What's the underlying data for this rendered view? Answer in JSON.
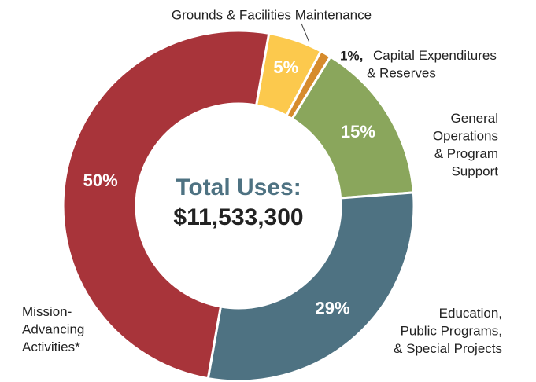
{
  "chart_data": {
    "type": "donut",
    "center_title": "Total Uses:",
    "center_value": "$11,533,300",
    "categories": [
      "Grounds & Facilities Maintenance",
      "Capital Expenditures\n& Reserves",
      "General\nOperations\n& Program\nSupport",
      "Education,\nPublic Programs,\n& Special Projects",
      "Mission-\nAdvancing\nActivities*"
    ],
    "values": [
      5,
      1,
      15,
      29,
      50
    ],
    "value_labels": [
      "5%",
      "1%,",
      "15%",
      "29%",
      "50%"
    ],
    "colors": [
      "#fcc94d",
      "#d68b2c",
      "#8aa65c",
      "#4e7282",
      "#a8343a"
    ]
  }
}
